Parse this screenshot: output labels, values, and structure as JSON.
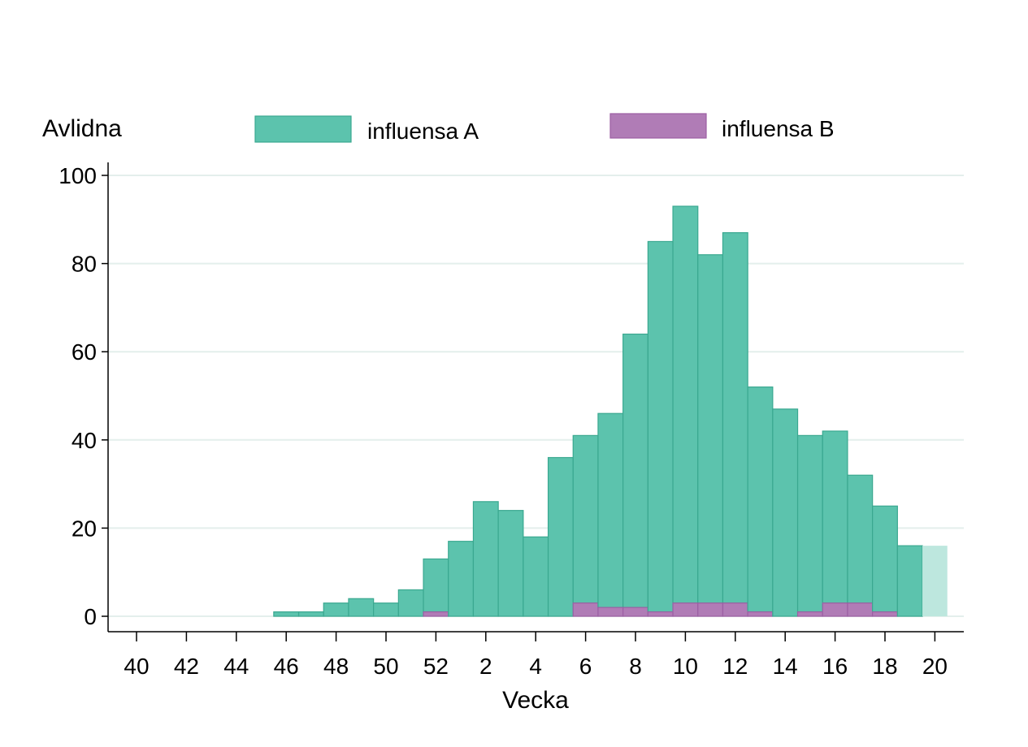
{
  "chart_data": {
    "type": "bar",
    "stacked": true,
    "ylabel": "Avlidna",
    "xlabel": "Vecka",
    "ylim": [
      0,
      100
    ],
    "yticks": [
      0,
      20,
      40,
      60,
      80,
      100
    ],
    "grid": true,
    "legend_position": "top",
    "weeks": [
      40,
      41,
      42,
      43,
      44,
      45,
      46,
      47,
      48,
      49,
      50,
      51,
      52,
      1,
      2,
      3,
      4,
      5,
      6,
      7,
      8,
      9,
      10,
      11,
      12,
      13,
      14,
      15,
      16,
      17,
      18,
      19,
      20
    ],
    "xtick_labels": [
      "40",
      "42",
      "44",
      "46",
      "48",
      "50",
      "52",
      "2",
      "4",
      "6",
      "8",
      "10",
      "12",
      "14",
      "16",
      "18",
      "20"
    ],
    "series": [
      {
        "name": "influensa A",
        "color": "#5cc3ad",
        "values": [
          0,
          0,
          0,
          0,
          0,
          0,
          1,
          1,
          3,
          4,
          3,
          6,
          12,
          17,
          26,
          24,
          18,
          36,
          38,
          44,
          62,
          84,
          90,
          79,
          84,
          51,
          47,
          40,
          39,
          29,
          24,
          16,
          16
        ]
      },
      {
        "name": "influensa B",
        "color": "#b07cb6",
        "values": [
          0,
          0,
          0,
          0,
          0,
          0,
          0,
          0,
          0,
          0,
          0,
          0,
          1,
          0,
          0,
          0,
          0,
          0,
          3,
          2,
          2,
          1,
          3,
          3,
          3,
          1,
          0,
          1,
          3,
          3,
          1,
          0,
          0
        ]
      }
    ],
    "preliminary_week": 20,
    "preliminary_color": "#bde7de"
  }
}
